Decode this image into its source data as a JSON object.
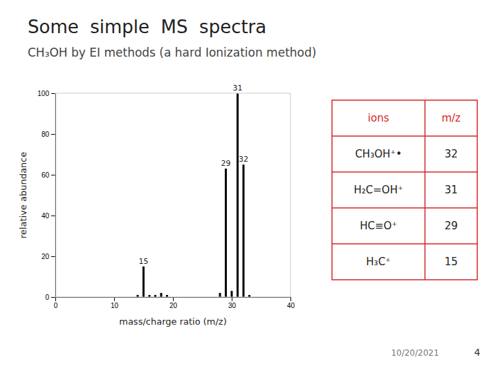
{
  "chart_data": {
    "type": "bar",
    "title": "Some  simple  MS  spectra",
    "subtitle": "CH₃OH by EI methods (a hard Ionization method)",
    "xlabel": "mass/charge ratio (m/z)",
    "ylabel": "relative abundance",
    "x": [
      1,
      2,
      3,
      4,
      5,
      6,
      7,
      8,
      9,
      10,
      11,
      12,
      13,
      14,
      15,
      16,
      17,
      18,
      19,
      20,
      21,
      22,
      23,
      24,
      25,
      26,
      27,
      28,
      29,
      30,
      31,
      32,
      33,
      34,
      35,
      36,
      37,
      38,
      39,
      40
    ],
    "values": [
      0,
      0,
      0,
      0,
      0,
      0,
      0,
      0,
      0,
      0,
      0,
      0,
      0,
      1,
      15,
      1,
      1,
      2,
      1,
      0,
      0,
      0,
      0,
      0,
      0,
      0,
      0,
      2,
      63,
      3,
      100,
      65,
      1,
      0,
      0,
      0,
      0,
      0,
      0,
      0
    ],
    "color": "#000000",
    "xlim": [
      0,
      40
    ],
    "ylim": [
      0,
      100
    ],
    "xticks": [
      0,
      10,
      20,
      30,
      40
    ],
    "yticks": [
      0,
      20,
      40,
      60,
      80,
      100
    ],
    "grid": false,
    "annotations": [
      {
        "text": "15",
        "x": 15,
        "y": 15
      },
      {
        "text": "29",
        "x": 29,
        "y": 63
      },
      {
        "text": "31",
        "x": 31,
        "y": 100
      },
      {
        "text": "32",
        "x": 32,
        "y": 65
      }
    ],
    "table": {
      "columns": [
        "ions",
        "m/z"
      ],
      "rows": [
        [
          "CH₃OH⁺•",
          "32"
        ],
        [
          "H₂C=OH⁺",
          "31"
        ],
        [
          "HC≡O⁺",
          "29"
        ],
        [
          "H₃C⁺",
          "15"
        ]
      ]
    },
    "footer": "10/20/2021",
    "page_number": "4"
  }
}
